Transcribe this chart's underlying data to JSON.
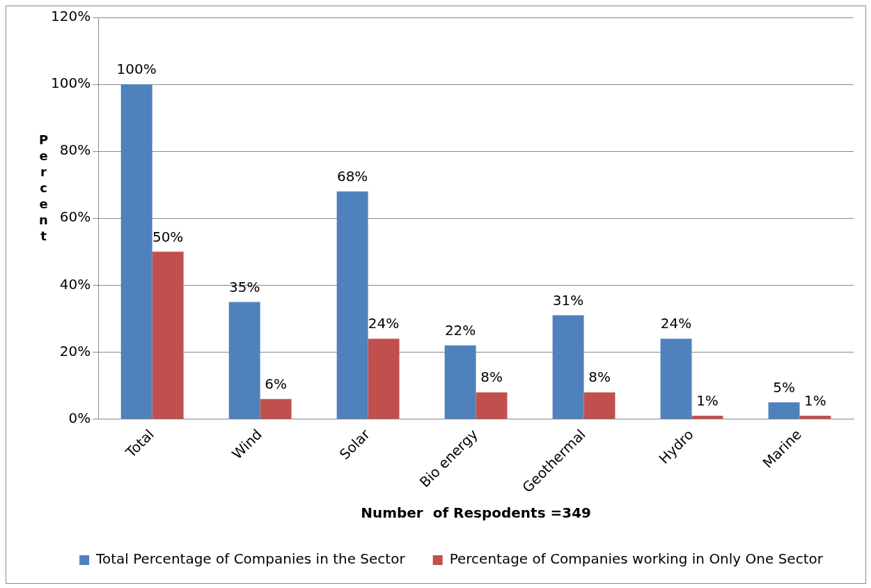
{
  "chart_data": {
    "type": "bar",
    "xlabel": "Number  of Respodents =349",
    "ylabel": "Percent",
    "categories": [
      "Total",
      "Wind",
      "Solar",
      "Bio energy",
      "Geothermal",
      "Hydro",
      "Marine"
    ],
    "series": [
      {
        "name": "Total Percentage of Companies in the Sector",
        "color": "#4f81bd",
        "values": [
          100,
          35,
          68,
          22,
          31,
          24,
          5
        ],
        "value_labels": [
          "100%",
          "35%",
          "68%",
          "22%",
          "31%",
          "24%",
          "5%"
        ]
      },
      {
        "name": "Percentage of Companies working in Only One Sector",
        "color": "#c0504d",
        "values": [
          50,
          6,
          24,
          8,
          8,
          1,
          1
        ],
        "value_labels": [
          "50%",
          "6%",
          "24%",
          "8%",
          "8%",
          "1%",
          "1%"
        ]
      }
    ],
    "ylim": [
      0,
      120
    ],
    "yticks": [
      {
        "value": 0,
        "label": "0%"
      },
      {
        "value": 20,
        "label": "20%"
      },
      {
        "value": 40,
        "label": "40%"
      },
      {
        "value": 60,
        "label": "60%"
      },
      {
        "value": 80,
        "label": "80%"
      },
      {
        "value": 100,
        "label": "100%"
      },
      {
        "value": 120,
        "label": "120%"
      }
    ],
    "grid": "y",
    "legend": "bottom"
  }
}
